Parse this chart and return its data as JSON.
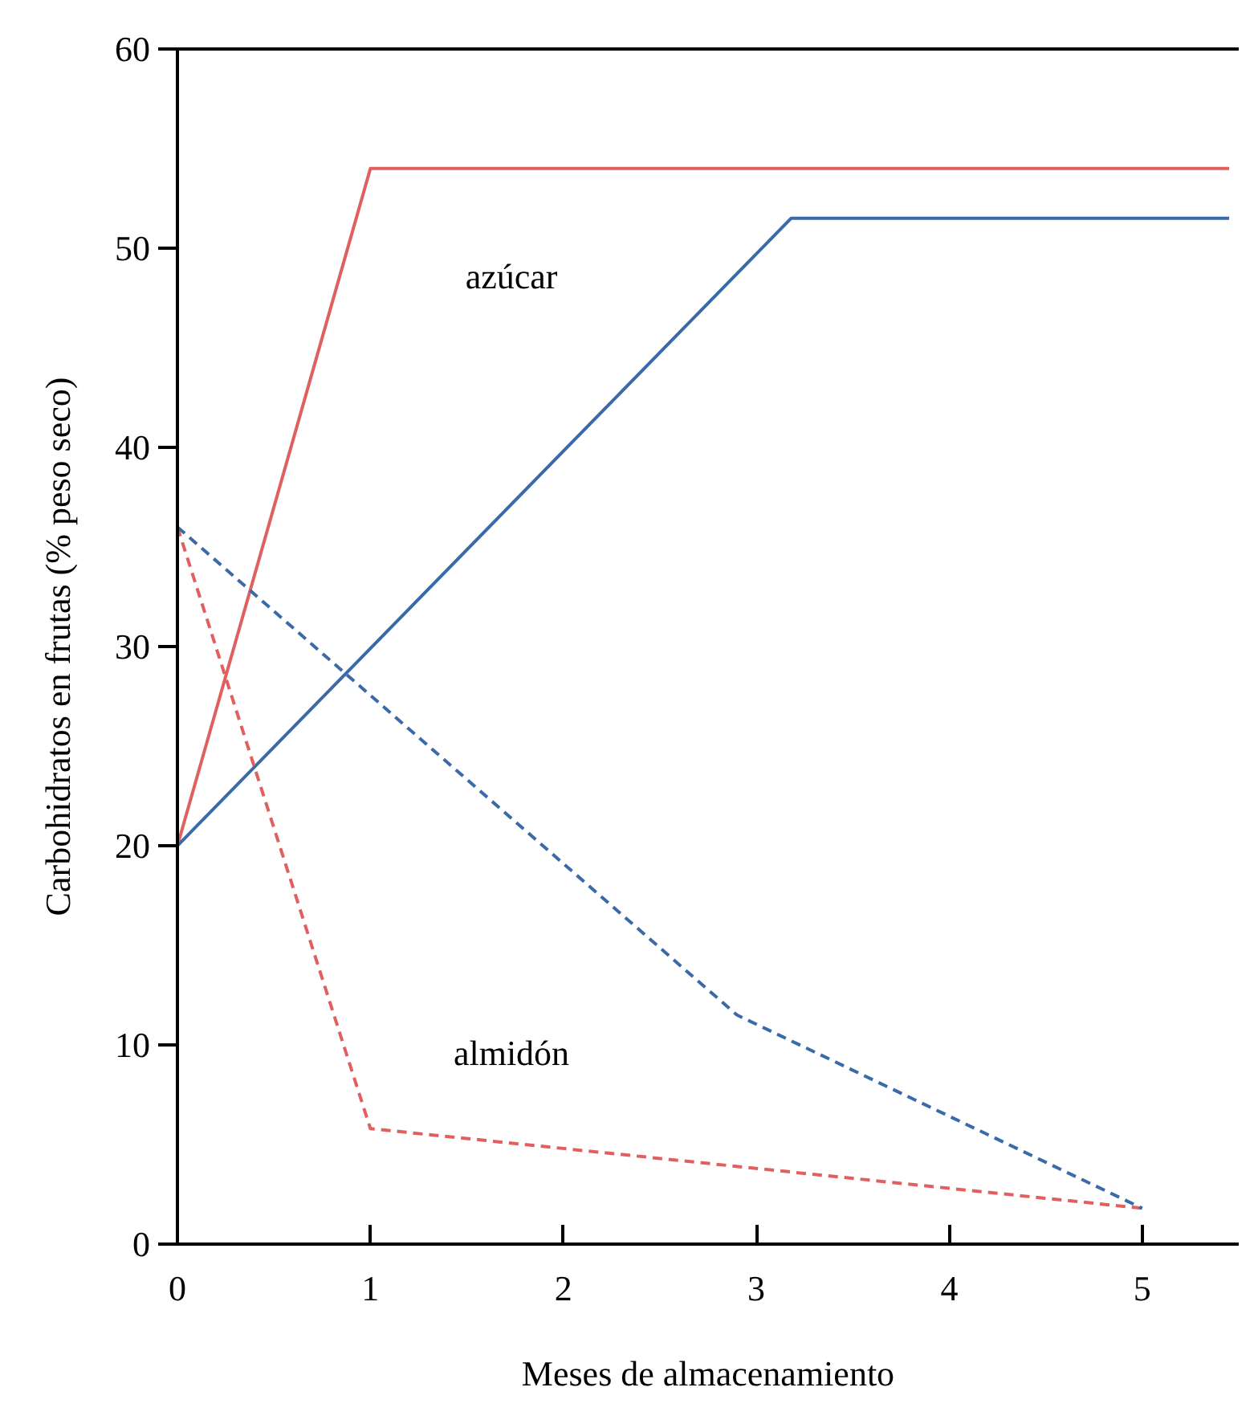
{
  "chart_data": {
    "type": "line",
    "xlabel": "Meses de almacenamiento",
    "ylabel": "Carbohidratos en frutas (% peso seco)",
    "xlim": [
      0,
      5.5
    ],
    "ylim": [
      0,
      60
    ],
    "xticks": [
      0,
      1,
      2,
      3,
      4,
      5
    ],
    "yticks": [
      0,
      10,
      20,
      30,
      40,
      50,
      60
    ],
    "grid": false,
    "marker": "none",
    "series": [
      {
        "color": "#e06060",
        "x": [
          0,
          1,
          5.45
        ],
        "values": [
          20,
          54,
          54
        ],
        "line_style": "solid"
      },
      {
        "color": "#3a6aa8",
        "x": [
          0,
          3.18,
          5.45
        ],
        "values": [
          20,
          51.5,
          51.5
        ],
        "line_style": "solid"
      },
      {
        "color": "#e06060",
        "x": [
          0,
          1,
          5
        ],
        "values": [
          36,
          5.8,
          1.8
        ],
        "line_style": "dashed"
      },
      {
        "color": "#3a6aa8",
        "x": [
          0,
          2.9,
          5
        ],
        "values": [
          36,
          11.5,
          1.8
        ],
        "line_style": "dashed"
      }
    ],
    "annotations": [
      "azúcar",
      "almidón"
    ]
  }
}
